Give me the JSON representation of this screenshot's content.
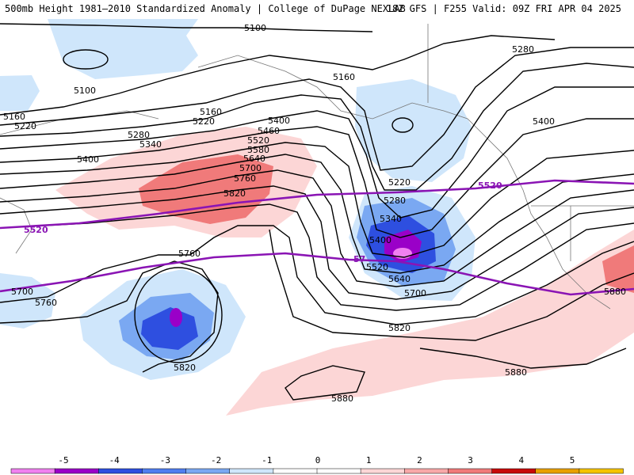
{
  "header": {
    "title": "500mb Height 1981–2010 Standardized Anomaly | College of DuPage NEXLAB",
    "valid": "18Z GFS | F255 Valid: 09Z FRI APR 04 2025"
  },
  "contour_labels": [
    "5100",
    "5100",
    "5160",
    "5160",
    "5160",
    "5220",
    "5220",
    "5220",
    "5280",
    "5280",
    "5280",
    "5340",
    "5340",
    "5400",
    "5400",
    "5400",
    "5400",
    "5460",
    "5520",
    "5520",
    "5580",
    "5640",
    "5640",
    "5700",
    "5700",
    "5700",
    "5760",
    "5760",
    "5760",
    "5820",
    "5820",
    "5820",
    "5880",
    "5880",
    "5880"
  ],
  "highlight_labels": [
    "5520",
    "5520",
    "57"
  ],
  "colorbar": {
    "ticks": [
      "-5",
      "-4",
      "-3",
      "-2",
      "-1",
      "0",
      "1",
      "2",
      "3",
      "4",
      "5"
    ],
    "colors": [
      "#f080f0",
      "#9a00c8",
      "#2e4fe0",
      "#4f7ef0",
      "#7aa8f2",
      "#cfe6fb",
      "#ffffff",
      "#ffffff",
      "#fcd6d6",
      "#f8a8a8",
      "#f07a7a",
      "#c80a0a",
      "#e8a000",
      "#f5c400"
    ]
  },
  "colors": {
    "neg_light": "#cfe6fb",
    "neg_mid": "#7aa8f2",
    "neg_strong": "#2e4fe0",
    "neg_extreme": "#9a00c8",
    "pos_light": "#fcd6d6",
    "pos_mid": "#f07a7a",
    "highlight_contour": "#8a14b4"
  }
}
